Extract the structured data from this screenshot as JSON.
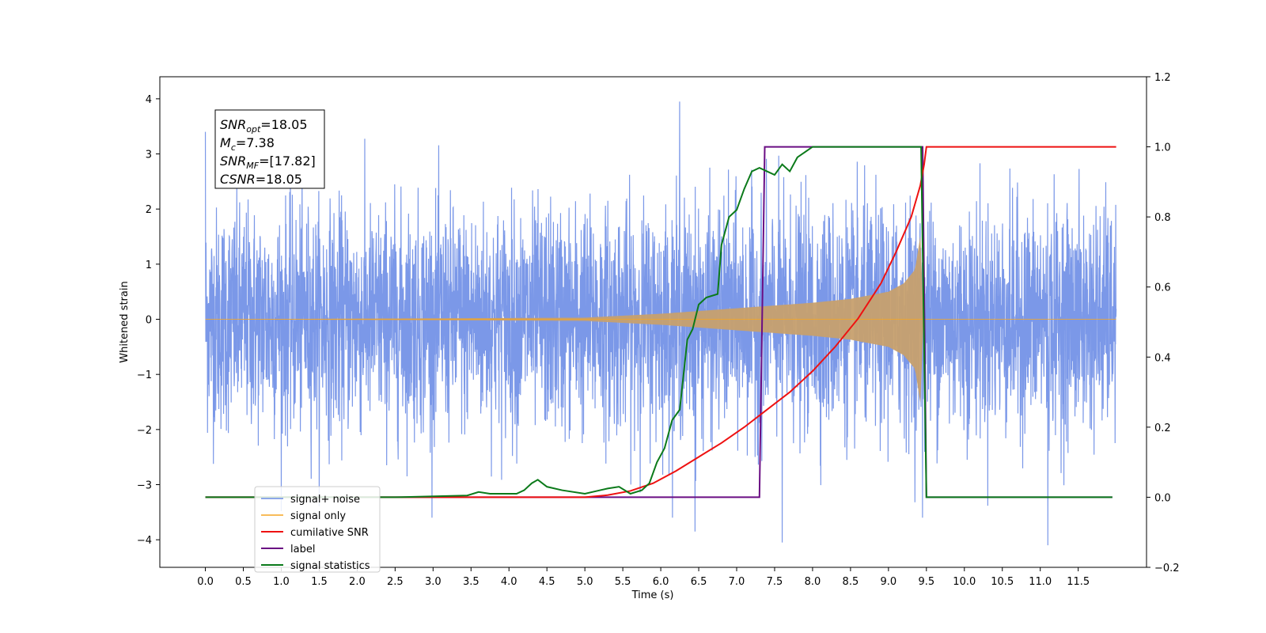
{
  "chart_data": {
    "type": "line",
    "title": "",
    "xlabel": "Time (s)",
    "ylabel": "Whitened strain",
    "y2label": "",
    "xlim": [
      -0.6,
      12.4
    ],
    "ylim": [
      -4.5,
      4.4
    ],
    "y2lim": [
      -0.2,
      1.2
    ],
    "x_ticks": [
      0.0,
      0.5,
      1.0,
      1.5,
      2.0,
      2.5,
      3.0,
      3.5,
      4.0,
      4.5,
      5.0,
      5.5,
      6.0,
      6.5,
      7.0,
      7.5,
      8.0,
      8.5,
      9.0,
      9.5,
      10.0,
      10.5,
      11.0,
      11.5
    ],
    "x_tick_labels": [
      "0.0",
      "0.5",
      "1.0",
      "1.5",
      "2.0",
      "2.5",
      "3.0",
      "3.5",
      "4.0",
      "4.5",
      "5.0",
      "5.5",
      "6.0",
      "6.5",
      "7.0",
      "7.5",
      "8.0",
      "8.5",
      "9.0",
      "9.5",
      "10.0",
      "10.5",
      "11.0",
      "11.5"
    ],
    "y_ticks": [
      -4,
      -3,
      -2,
      -1,
      0,
      1,
      2,
      3,
      4
    ],
    "y_tick_labels": [
      "−4",
      "−3",
      "−2",
      "−1",
      "0",
      "1",
      "2",
      "3",
      "4"
    ],
    "y2_ticks": [
      -0.2,
      0.0,
      0.2,
      0.4,
      0.6,
      0.8,
      1.0,
      1.2
    ],
    "y2_tick_labels": [
      "−0.2",
      "0.0",
      "0.2",
      "0.4",
      "0.6",
      "0.8",
      "1.0",
      "1.2"
    ],
    "grid": false,
    "legend_position": "lower-left",
    "annotation_lines": [
      {
        "name": "SNR",
        "sub": "opt",
        "value": "=18.05"
      },
      {
        "name": "M",
        "sub": "c",
        "value": "=7.38"
      },
      {
        "name": "SNR",
        "sub": "MF",
        "value": "=[17.82]"
      },
      {
        "name": "CSNR",
        "sub": "",
        "value": "=18.05"
      }
    ],
    "series": [
      {
        "name": "signal+ noise",
        "color": "#6d8de6",
        "axis": "left",
        "x_range": [
          0.0,
          12.0
        ],
        "noise_sigma": 1.0,
        "notable_spikes": [
          [
            0.0,
            3.4
          ],
          [
            6.25,
            3.95
          ],
          [
            9.45,
            -3.6
          ],
          [
            7.6,
            -4.05
          ],
          [
            11.1,
            -4.1
          ],
          [
            6.45,
            -3.85
          ]
        ]
      },
      {
        "name": "signal only",
        "color": "#f5a623",
        "axis": "left",
        "x_range": [
          0.0,
          12.0
        ],
        "envelope": [
          [
            0.0,
            0.0
          ],
          [
            5.0,
            0.03
          ],
          [
            6.0,
            0.1
          ],
          [
            7.0,
            0.2
          ],
          [
            8.0,
            0.3
          ],
          [
            8.5,
            0.37
          ],
          [
            9.0,
            0.5
          ],
          [
            9.2,
            0.65
          ],
          [
            9.35,
            0.9
          ],
          [
            9.43,
            1.6
          ],
          [
            9.45,
            0.0
          ],
          [
            12.0,
            0.0
          ]
        ]
      },
      {
        "name": "cumilative SNR",
        "color": "#ee1111",
        "axis": "right",
        "x": [
          0.0,
          5.0,
          5.3,
          5.6,
          5.9,
          6.2,
          6.5,
          6.8,
          7.1,
          7.4,
          7.7,
          8.0,
          8.3,
          8.6,
          8.9,
          9.1,
          9.3,
          9.42,
          9.47,
          9.5,
          12.0
        ],
        "y": [
          0.0,
          0.0,
          0.006,
          0.018,
          0.04,
          0.075,
          0.115,
          0.155,
          0.2,
          0.25,
          0.3,
          0.36,
          0.43,
          0.51,
          0.61,
          0.7,
          0.8,
          0.89,
          0.95,
          1.0,
          1.0
        ]
      },
      {
        "name": "label",
        "color": "#6a0d83",
        "axis": "right",
        "x": [
          0.0,
          7.3,
          7.37,
          9.45,
          9.5,
          11.95
        ],
        "y": [
          0.0,
          0.0,
          1.0,
          1.0,
          0.0,
          0.0
        ]
      },
      {
        "name": "signal statistics",
        "color": "#0b7a1a",
        "axis": "right",
        "x": [
          0.0,
          2.5,
          3.45,
          3.6,
          3.75,
          4.1,
          4.2,
          4.3,
          4.38,
          4.5,
          4.7,
          5.0,
          5.2,
          5.3,
          5.45,
          5.6,
          5.75,
          5.85,
          5.95,
          6.05,
          6.15,
          6.25,
          6.35,
          6.42,
          6.5,
          6.6,
          6.75,
          6.8,
          6.9,
          7.0,
          7.1,
          7.2,
          7.3,
          7.4,
          7.5,
          7.6,
          7.7,
          7.8,
          8.0,
          8.3,
          9.43,
          9.5,
          11.95
        ],
        "y": [
          0.0,
          0.0,
          0.005,
          0.015,
          0.01,
          0.01,
          0.02,
          0.04,
          0.05,
          0.03,
          0.02,
          0.01,
          0.02,
          0.025,
          0.03,
          0.01,
          0.02,
          0.04,
          0.1,
          0.14,
          0.22,
          0.25,
          0.45,
          0.48,
          0.55,
          0.57,
          0.58,
          0.72,
          0.8,
          0.82,
          0.88,
          0.93,
          0.94,
          0.93,
          0.92,
          0.95,
          0.93,
          0.97,
          1.0,
          1.0,
          1.0,
          0.0,
          0.0
        ]
      }
    ]
  }
}
